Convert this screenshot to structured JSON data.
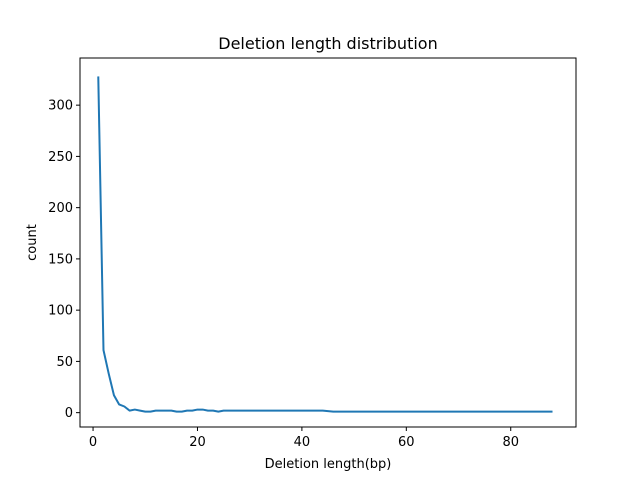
{
  "chart_data": {
    "type": "line",
    "title": "Deletion length distribution",
    "xlabel": "Deletion length(bp)",
    "ylabel": "count",
    "xlim": [
      -2.5,
      92.5
    ],
    "ylim": [
      -14,
      346
    ],
    "xticks": [
      0,
      20,
      40,
      60,
      80
    ],
    "yticks": [
      0,
      50,
      100,
      150,
      200,
      250,
      300
    ],
    "grid": false,
    "series": [
      {
        "color": "#1f77b4",
        "x": [
          1,
          2,
          3,
          4,
          5,
          6,
          7,
          8,
          9,
          10,
          11,
          12,
          13,
          14,
          15,
          16,
          17,
          18,
          19,
          20,
          21,
          22,
          23,
          24,
          25,
          26,
          27,
          28,
          29,
          30,
          32,
          34,
          36,
          38,
          40,
          42,
          44,
          46,
          50,
          54,
          58,
          62,
          66,
          70,
          74,
          78,
          82,
          86,
          88
        ],
        "y": [
          328,
          61,
          38,
          17,
          8,
          6,
          2,
          3,
          2,
          1,
          1,
          2,
          2,
          2,
          2,
          1,
          1,
          2,
          2,
          3,
          3,
          2,
          2,
          1,
          2,
          2,
          2,
          2,
          2,
          2,
          2,
          2,
          2,
          2,
          2,
          2,
          2,
          1,
          1,
          1,
          1,
          1,
          1,
          1,
          1,
          1,
          1,
          1,
          1
        ]
      }
    ]
  }
}
